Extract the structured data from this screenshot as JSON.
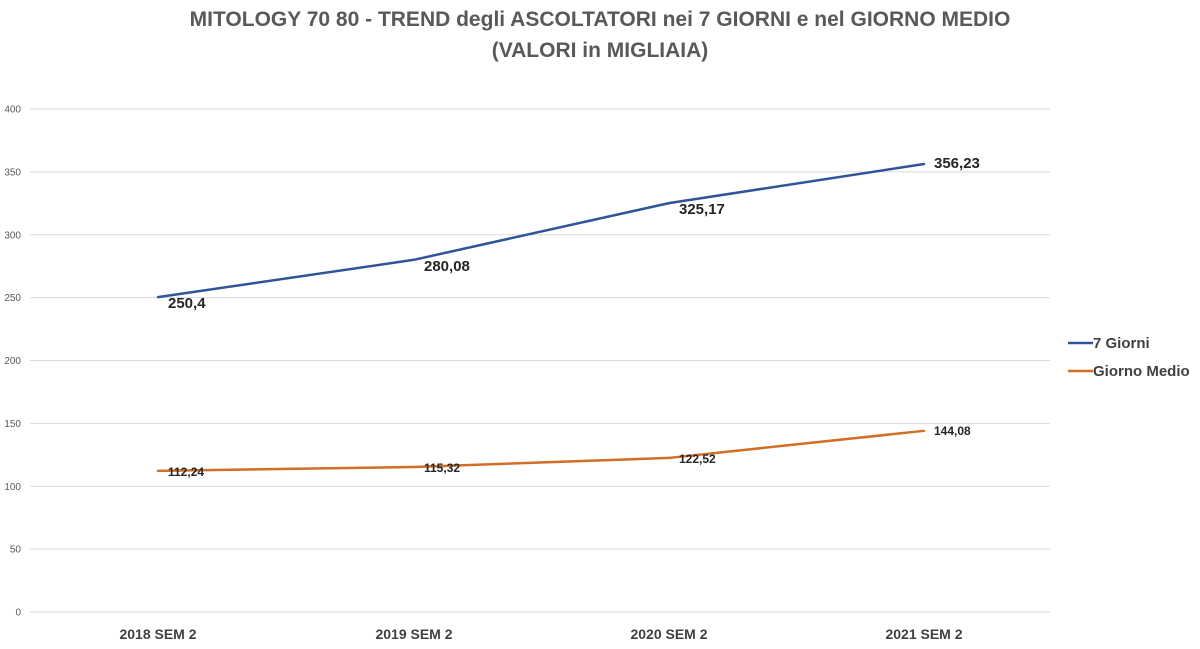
{
  "chart_data": {
    "type": "line",
    "title": "MITOLOGY 70 80 - TREND degli ASCOLTATORI nei 7 GIORNI e nel GIORNO MEDIO",
    "subtitle": "(VALORI in MIGLIAIA)",
    "xlabel": "",
    "ylabel": "",
    "categories": [
      "2018 SEM 2",
      "2019 SEM 2",
      "2020 SEM 2",
      "2021 SEM 2"
    ],
    "ylim": [
      0,
      400
    ],
    "yticks": [
      0,
      50,
      100,
      150,
      200,
      250,
      300,
      350,
      400
    ],
    "grid": true,
    "legend_position": "right",
    "series": [
      {
        "name": "7 Giorni",
        "color": "#2E5597",
        "values": [
          250.4,
          280.08,
          325.17,
          356.23
        ],
        "labels": [
          "250,4",
          "280,08",
          "325,17",
          "356,23"
        ]
      },
      {
        "name": "Giorno Medio",
        "color": "#D26E25",
        "values": [
          112.24,
          115.32,
          122.52,
          144.08
        ],
        "labels": [
          "112,24",
          "115,32",
          "122,52",
          "144,08"
        ]
      }
    ]
  }
}
